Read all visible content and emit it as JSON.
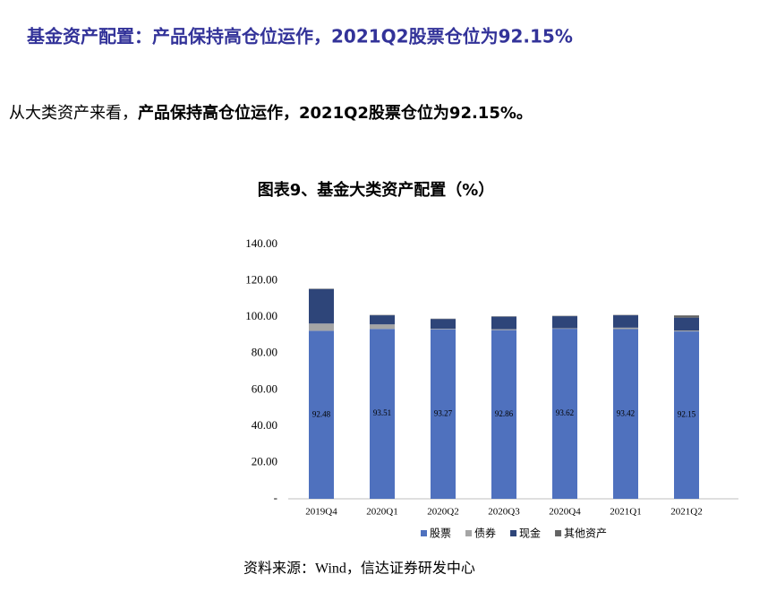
{
  "heading": "基金资产配置：产品保持高仓位运作，2021Q2股票仓位为92.15%",
  "paragraph": {
    "lead": "从大类资产来看，",
    "bold": "产品保持高仓位运作，2021Q2股票仓位为92.15%。"
  },
  "chart_data": {
    "type": "stacked-bar",
    "title": "图表9、基金大类资产配置（%）",
    "categories": [
      "2019Q4",
      "2020Q1",
      "2020Q2",
      "2020Q3",
      "2020Q4",
      "2021Q1",
      "2021Q2"
    ],
    "series": [
      {
        "name": "股票",
        "color": "#4f71be",
        "values": [
          92.48,
          93.51,
          93.27,
          92.86,
          93.62,
          93.42,
          92.15
        ],
        "labels": true
      },
      {
        "name": "债券",
        "color": "#a5a5a5",
        "values": [
          4.0,
          2.5,
          0.3,
          0.5,
          0.3,
          0.8,
          0.5
        ]
      },
      {
        "name": "现金",
        "color": "#2e4579",
        "values": [
          19.0,
          5.0,
          5.4,
          6.9,
          6.6,
          6.8,
          7.1
        ]
      },
      {
        "name": "其他资产",
        "color": "#636363",
        "values": [
          0.2,
          0.2,
          0.2,
          0.2,
          0.2,
          0.2,
          1.2
        ]
      }
    ],
    "ylim": [
      0,
      140
    ],
    "yticks": [
      {
        "value": 0,
        "label": "-"
      },
      {
        "value": 20,
        "label": "20.00"
      },
      {
        "value": 40,
        "label": "40.00"
      },
      {
        "value": 60,
        "label": "60.00"
      },
      {
        "value": 80,
        "label": "80.00"
      },
      {
        "value": 100,
        "label": "100.00"
      },
      {
        "value": 120,
        "label": "120.00"
      },
      {
        "value": 140,
        "label": "140.00"
      }
    ]
  },
  "source": "资料来源：Wind，信达证券研发中心"
}
